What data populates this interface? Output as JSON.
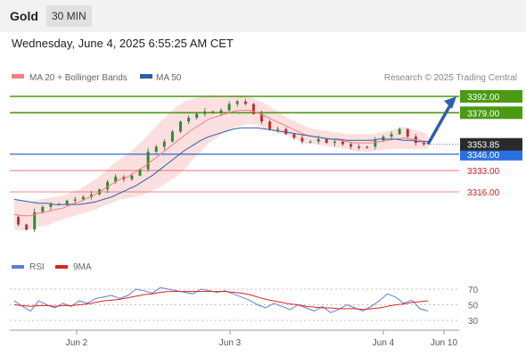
{
  "header": {
    "instrument": "Gold",
    "timeframe": "30 MIN"
  },
  "datetime": "Wednesday, June 4, 2025 6:55:25 AM CET",
  "legend": [
    {
      "name": "MA 20 + Bollinger Bands",
      "color": "#f08080"
    },
    {
      "name": "MA 50",
      "color": "#2b5fa8"
    }
  ],
  "research_credit": "Research © 2025 Trading Central",
  "rsi_legend": [
    {
      "name": "RSI",
      "color": "#5b7fd6"
    },
    {
      "name": "9MA",
      "color": "#dd2222"
    }
  ],
  "chart_data": {
    "type": "candlestick",
    "price_axis": {
      "ylim": [
        3300,
        3400
      ]
    },
    "x_ticks": [
      "Jun 2",
      "Jun 3",
      "Jun 4",
      "Jun 10"
    ],
    "last_price": {
      "label": "3353.85",
      "value": 3353.85
    },
    "levels": [
      {
        "value": 3392.0,
        "label": "3392.00",
        "style": "resistance-green"
      },
      {
        "value": 3379.0,
        "label": "3379.00",
        "style": "resistance-green"
      },
      {
        "value": 3346.0,
        "label": "3346.00",
        "style": "pivot-blue"
      },
      {
        "value": 3333.0,
        "label": "3333.00",
        "style": "support-red"
      },
      {
        "value": 3316.0,
        "label": "3316.00",
        "style": "support-red"
      }
    ],
    "price_path": [
      3296,
      3290,
      3286,
      3300,
      3304,
      3306,
      3306,
      3309,
      3310,
      3312,
      3314,
      3318,
      3324,
      3328,
      3326,
      3329,
      3334,
      3348,
      3352,
      3356,
      3364,
      3372,
      3375,
      3378,
      3380,
      3379,
      3381,
      3386,
      3388,
      3386,
      3378,
      3372,
      3366,
      3366,
      3362,
      3359,
      3356,
      3356,
      3358,
      3355,
      3356,
      3354,
      3352,
      3351,
      3352,
      3357,
      3360,
      3362,
      3366,
      3360,
      3355,
      3353.85
    ],
    "ma20": [
      3298,
      3297,
      3297,
      3299,
      3300,
      3302,
      3303,
      3306,
      3308,
      3311,
      3314,
      3318,
      3322,
      3326,
      3328,
      3332,
      3336,
      3341,
      3346,
      3351,
      3356,
      3361,
      3366,
      3370,
      3374,
      3376,
      3378,
      3380,
      3381,
      3381,
      3379,
      3376,
      3373,
      3370,
      3367,
      3364,
      3361,
      3360,
      3359,
      3358,
      3357,
      3356,
      3355,
      3355,
      3355,
      3356,
      3357,
      3358,
      3359,
      3358,
      3357,
      3356
    ],
    "ma50": [
      3310,
      3309,
      3308,
      3307,
      3307,
      3306,
      3306,
      3306,
      3306,
      3307,
      3308,
      3310,
      3312,
      3315,
      3318,
      3321,
      3325,
      3329,
      3334,
      3339,
      3344,
      3349,
      3353,
      3357,
      3360,
      3362,
      3364,
      3366,
      3367,
      3367,
      3367,
      3366,
      3365,
      3364,
      3363,
      3362,
      3361,
      3360,
      3359,
      3358,
      3358,
      3357,
      3357,
      3357,
      3357,
      3358,
      3358,
      3358,
      3357,
      3357,
      3356,
      3356
    ],
    "bb_upper": [
      3310,
      3309,
      3308,
      3310,
      3311,
      3312,
      3313,
      3316,
      3318,
      3322,
      3326,
      3331,
      3337,
      3342,
      3346,
      3352,
      3358,
      3365,
      3372,
      3378,
      3384,
      3388,
      3390,
      3392,
      3393,
      3393,
      3392,
      3393,
      3393,
      3392,
      3389,
      3386,
      3382,
      3378,
      3374,
      3371,
      3368,
      3366,
      3365,
      3364,
      3363,
      3362,
      3362,
      3362,
      3362,
      3363,
      3364,
      3366,
      3368,
      3366,
      3364,
      3362
    ],
    "bb_lower": [
      3286,
      3285,
      3286,
      3288,
      3289,
      3292,
      3294,
      3296,
      3298,
      3300,
      3302,
      3305,
      3307,
      3310,
      3311,
      3312,
      3314,
      3317,
      3320,
      3324,
      3328,
      3334,
      3342,
      3348,
      3355,
      3359,
      3364,
      3367,
      3369,
      3370,
      3369,
      3366,
      3364,
      3362,
      3360,
      3357,
      3354,
      3354,
      3353,
      3352,
      3351,
      3350,
      3348,
      3348,
      3348,
      3349,
      3350,
      3350,
      3350,
      3350,
      3350,
      3350
    ],
    "forecast": {
      "from": 3353.85,
      "to": 3392.0,
      "direction": "up"
    },
    "rsi": {
      "ticks": [
        70,
        50,
        30
      ],
      "ylim": [
        20,
        80
      ],
      "series": [
        {
          "name": "RSI",
          "values": [
            55,
            48,
            42,
            55,
            50,
            46,
            52,
            48,
            55,
            52,
            58,
            60,
            62,
            58,
            62,
            70,
            68,
            65,
            72,
            70,
            68,
            66,
            64,
            70,
            68,
            66,
            68,
            64,
            60,
            56,
            50,
            46,
            52,
            48,
            44,
            50,
            46,
            42,
            48,
            40,
            44,
            50,
            46,
            42,
            48,
            55,
            64,
            60,
            52,
            56,
            45,
            42
          ]
        },
        {
          "name": "9MA",
          "values": [
            50,
            49,
            48,
            49,
            49,
            48,
            49,
            49,
            50,
            51,
            53,
            55,
            56,
            57,
            59,
            61,
            63,
            64,
            66,
            67,
            67,
            67,
            67,
            67,
            67,
            67,
            67,
            66,
            65,
            63,
            60,
            57,
            55,
            53,
            51,
            50,
            48,
            47,
            46,
            46,
            45,
            45,
            45,
            44,
            45,
            46,
            48,
            50,
            51,
            53,
            54,
            55
          ]
        }
      ]
    }
  }
}
